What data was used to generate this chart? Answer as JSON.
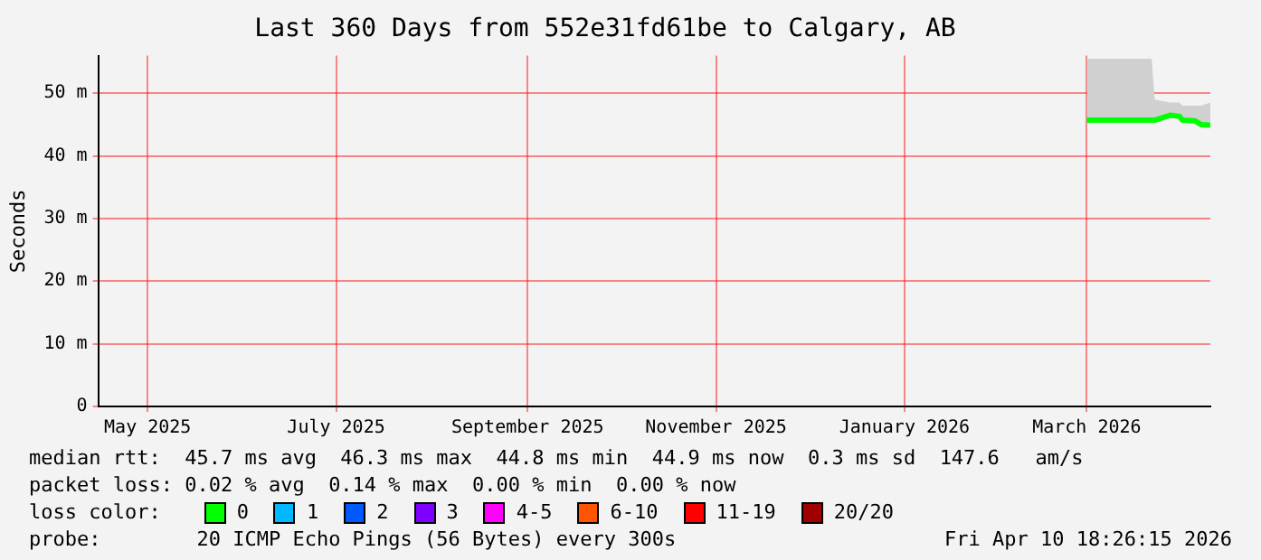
{
  "chart_data": {
    "type": "line",
    "title": "Last 360 Days from 552e31fd61be to Calgary, AB",
    "ylabel": "Seconds",
    "xlim": [
      "2025-04-15",
      "2026-04-10"
    ],
    "xticks": [
      {
        "value": "2025-05-01",
        "label": "May 2025"
      },
      {
        "value": "2025-07-01",
        "label": "July 2025"
      },
      {
        "value": "2025-09-01",
        "label": "September 2025"
      },
      {
        "value": "2025-11-01",
        "label": "November 2025"
      },
      {
        "value": "2026-01-01",
        "label": "January 2026"
      },
      {
        "value": "2026-03-01",
        "label": "March 2026"
      }
    ],
    "ylim": [
      0,
      56
    ],
    "yticks": [
      0,
      {
        "value": 10,
        "label": "10 m"
      },
      {
        "value": 20,
        "label": "20 m"
      },
      {
        "value": 30,
        "label": "30 m"
      },
      {
        "value": 40,
        "label": "40 m"
      },
      {
        "value": 50,
        "label": "50 m"
      }
    ],
    "grid": true,
    "legend": false,
    "marker": "none",
    "line_style": "solid",
    "series": [
      {
        "color": "#00ff00",
        "x": [
          "2026-03-01",
          "2026-03-10",
          "2026-03-22",
          "2026-03-23",
          "2026-03-28",
          "2026-03-31",
          "2026-04-01",
          "2026-04-05",
          "2026-04-07",
          "2026-04-10"
        ],
        "values": [
          45.7,
          45.7,
          45.7,
          45.7,
          46.5,
          46.3,
          45.7,
          45.6,
          45.0,
          44.9
        ],
        "lower": [
          45.5,
          45.5,
          45.5,
          45.5,
          46.0,
          46.0,
          45.5,
          45.4,
          44.8,
          44.8
        ],
        "upper": [
          55.5,
          55.5,
          55.5,
          49.0,
          48.5,
          48.5,
          48.0,
          48.0,
          48.0,
          48.5
        ]
      }
    ],
    "annotations": [
      "median rtt:  45.7 ms avg  46.3 ms max  44.8 ms min  44.9 ms now  0.3 ms sd  147.6   am/s",
      "packet loss: 0.02 % avg  0.14 % max  0.00 % min  0.00 % now",
      "loss color:",
      "0",
      "1",
      "2",
      "3",
      "4-5",
      "6-10",
      "11-19",
      "20/20",
      "probe:        20 ICMP Echo Pings (56 Bytes) every 300s",
      "Fri Apr 10 18:26:15 2026"
    ]
  }
}
